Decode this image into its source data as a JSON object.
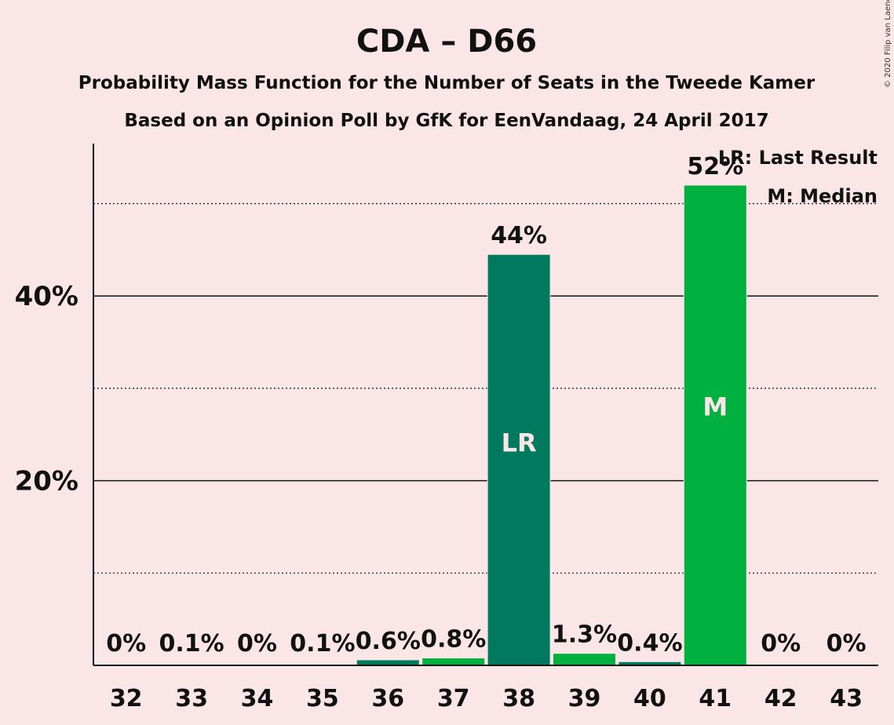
{
  "copyright": "© 2020 Filip van Laenen",
  "colors": {
    "background": "#fbe6e7",
    "last_result_bar": "#007a5e",
    "median_bar": "#00b140",
    "other_bar": "#007a5e",
    "other_bar_light": "#00b140"
  },
  "chart_data": {
    "type": "bar",
    "title": "CDA – D66",
    "subtitle": "Probability Mass Function for the Number of Seats in the Tweede Kamer",
    "subtitle2": "Based on an Opinion Poll by GfK for EenVandaag, 24 April 2017",
    "categories": [
      "32",
      "33",
      "34",
      "35",
      "36",
      "37",
      "38",
      "39",
      "40",
      "41",
      "42",
      "43"
    ],
    "values": [
      0,
      0.1,
      0,
      0.1,
      0.6,
      0.8,
      44.5,
      1.3,
      0.4,
      52,
      0,
      0
    ],
    "data_labels": [
      "0%",
      "0.1%",
      "0%",
      "0.1%",
      "0.6%",
      "0.8%",
      "44%",
      "1.3%",
      "0.4%",
      "52%",
      "0%",
      "0%"
    ],
    "bar_colors": [
      "#007a5e",
      "#00b140",
      "#007a5e",
      "#00b140",
      "#007a5e",
      "#00b140",
      "#007a5e",
      "#00b140",
      "#007a5e",
      "#00b140",
      "#007a5e",
      "#00b140"
    ],
    "inside_labels": {
      "38": "LR",
      "41": "M"
    },
    "ylim": [
      0,
      56.5
    ],
    "yticks": [
      {
        "value": 20,
        "label": "20%",
        "major": true
      },
      {
        "value": 40,
        "label": "40%",
        "major": true
      }
    ],
    "minor_grid": [
      10,
      30,
      50
    ],
    "legend": [
      "LR: Last Result",
      "M: Median"
    ],
    "legend_position": "top-right"
  }
}
